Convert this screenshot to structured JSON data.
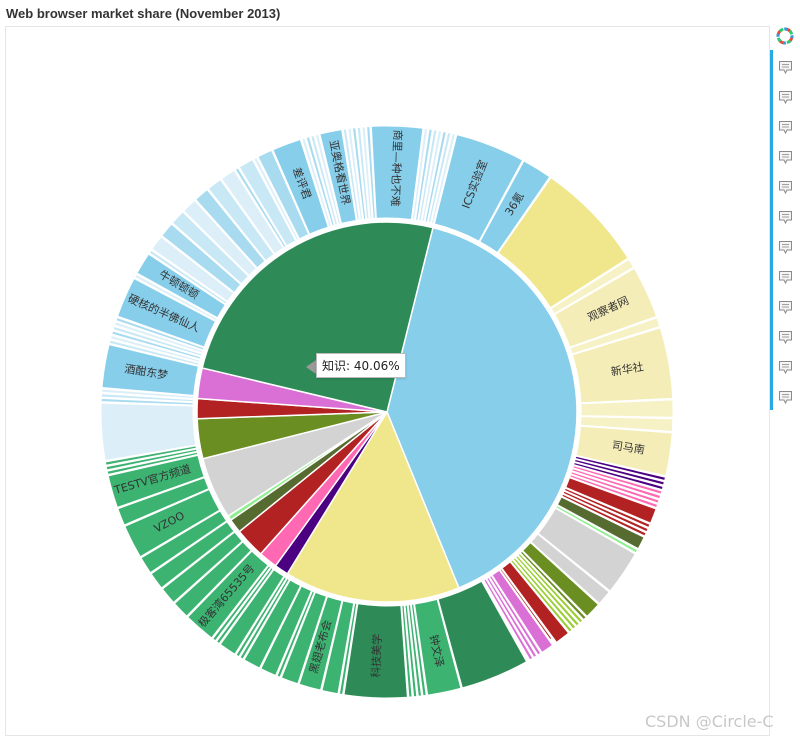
{
  "chart_data": {
    "type": "pie",
    "title": "Web browser market share (November 2013)",
    "start_angle_deg": 76,
    "inner": [
      {
        "name": "知识",
        "value": 40.06,
        "color": "#87CEEB"
      },
      {
        "name": "",
        "value": 15.0,
        "color": "#F0E68C"
      },
      {
        "name": "",
        "value": 1.2,
        "color": "#4B0082"
      },
      {
        "name": "",
        "value": 1.6,
        "color": "#FF69B4"
      },
      {
        "name": "",
        "value": 2.6,
        "color": "#B22222"
      },
      {
        "name": "",
        "value": 1.2,
        "color": "#556B2F"
      },
      {
        "name": "",
        "value": 0.4,
        "color": "#90EE90"
      },
      {
        "name": "",
        "value": 5.3,
        "color": "#D3D3D3"
      },
      {
        "name": "",
        "value": 3.4,
        "color": "#6B8E23"
      },
      {
        "name": "",
        "value": 1.7,
        "color": "#B22222"
      },
      {
        "name": "",
        "value": 2.6,
        "color": "#DA70D6"
      },
      {
        "name": "",
        "value": 25.24,
        "color": "#2E8B57"
      }
    ],
    "outer": [
      [
        6.1,
        "ICS实验室"
      ],
      [
        2.7,
        "36氪"
      ],
      [
        9.6,
        "",
        "#F0E68C"
      ],
      [
        0.9,
        ""
      ],
      [
        4.6,
        "观察者网"
      ],
      [
        0.9,
        ""
      ],
      [
        6.2,
        "新华社"
      ],
      [
        1.6,
        ""
      ],
      [
        1.2,
        ""
      ],
      [
        3.8,
        "司马南"
      ],
      [
        0.4,
        "",
        "#4B0082"
      ],
      [
        0.4,
        "",
        "#4B0082"
      ],
      [
        0.4,
        "",
        "#4B0082"
      ],
      [
        0.4,
        "",
        "#FF69B4"
      ],
      [
        0.4,
        "",
        "#FF69B4"
      ],
      [
        0.4,
        "",
        "#FF69B4"
      ],
      [
        0.4,
        "",
        "#FF69B4"
      ],
      [
        1.4,
        "",
        "#B22222"
      ],
      [
        0.4,
        "",
        "#B22222"
      ],
      [
        0.4,
        "",
        "#B22222"
      ],
      [
        0.4,
        "",
        "#B22222"
      ],
      [
        1.2,
        "",
        "#556B2F"
      ],
      [
        0.4,
        "",
        "#90EE90"
      ],
      [
        3.9,
        "",
        "#D3D3D3"
      ],
      [
        1.4,
        "",
        "#D3D3D3"
      ],
      [
        1.5,
        "",
        "#6B8E23"
      ],
      [
        0.4,
        "",
        "#6B8E23"
      ],
      [
        0.4,
        "",
        "#9ACD32"
      ],
      [
        0.4,
        "",
        "#9ACD32"
      ],
      [
        0.4,
        "",
        "#9ACD32"
      ],
      [
        0.4,
        "",
        "#9ACD32"
      ],
      [
        1.4,
        "",
        "#B22222"
      ],
      [
        0.3,
        "",
        "#B22222"
      ],
      [
        1.2,
        "",
        "#DA70D6"
      ],
      [
        0.4,
        "",
        "#DA70D6"
      ],
      [
        0.4,
        "",
        "#DA70D6"
      ],
      [
        0.4,
        "",
        "#DA70D6"
      ],
      [
        0.2,
        "",
        "#DA70D6"
      ],
      [
        6.0,
        "",
        "#2E8B57"
      ],
      [
        3.0,
        "钟文泽",
        "#3CB371"
      ],
      [
        0.4,
        "",
        "#3CB371"
      ],
      [
        0.4,
        "",
        "#3CB371"
      ],
      [
        0.4,
        "",
        "#3CB371"
      ],
      [
        0.4,
        "",
        "#3CB371"
      ],
      [
        5.5,
        "科技美学",
        "#2E8B57"
      ],
      [
        0.4,
        "",
        "#3CB371"
      ],
      [
        1.5,
        "",
        "#3CB371"
      ],
      [
        2.0,
        "黑翅老布会",
        "#3CB371"
      ],
      [
        1.6,
        "",
        "#3CB371"
      ],
      [
        0.4,
        "",
        "#3CB371"
      ],
      [
        1.5,
        "",
        "#3CB371"
      ],
      [
        1.6,
        "",
        "#3CB371"
      ],
      [
        0.4,
        "",
        "#3CB371"
      ],
      [
        0.4,
        "",
        "#3CB371"
      ],
      [
        1.6,
        "",
        "#3CB371"
      ],
      [
        0.4,
        "",
        "#3CB371"
      ],
      [
        0.4,
        "",
        "#3CB371"
      ],
      [
        2.8,
        "极客湾65535号",
        "#3CB371"
      ],
      [
        1.6,
        "",
        "#3CB371"
      ],
      [
        1.6,
        "",
        "#3CB371"
      ],
      [
        1.6,
        "",
        "#3CB371"
      ],
      [
        1.6,
        "",
        "#3CB371"
      ],
      [
        3.0,
        "VZOO",
        "#3CB371"
      ],
      [
        1.6,
        "",
        "#3CB371"
      ],
      [
        2.9,
        "TESTV官方频道",
        "#3CB371"
      ],
      [
        0.4,
        "",
        "#3CB371"
      ],
      [
        0.4,
        "",
        "#3CB371"
      ],
      [
        0.4,
        "",
        "#3CB371"
      ],
      [
        5.0,
        ""
      ],
      [
        0.4,
        ""
      ],
      [
        0.4,
        ""
      ],
      [
        0.4,
        ""
      ],
      [
        3.8,
        "酒酣东梦"
      ],
      [
        0.4,
        ""
      ],
      [
        0.4,
        ""
      ],
      [
        0.4,
        ""
      ],
      [
        0.4,
        ""
      ],
      [
        0.4,
        ""
      ],
      [
        0.4,
        ""
      ],
      [
        3.6,
        "硬核的半佛仙人"
      ],
      [
        0.4,
        ""
      ],
      [
        2.0,
        "牛顿顿顿"
      ],
      [
        0.4,
        ""
      ],
      [
        1.4,
        ""
      ],
      [
        1.4,
        ""
      ],
      [
        1.4,
        ""
      ],
      [
        1.4,
        ""
      ],
      [
        1.4,
        ""
      ],
      [
        1.4,
        ""
      ],
      [
        1.4,
        ""
      ],
      [
        0.4,
        ""
      ],
      [
        1.4,
        ""
      ],
      [
        0.4,
        ""
      ],
      [
        1.4,
        ""
      ],
      [
        2.6,
        "差评君"
      ],
      [
        0.4,
        ""
      ],
      [
        0.4,
        ""
      ],
      [
        0.4,
        ""
      ],
      [
        0.4,
        ""
      ],
      [
        2.0,
        "亚奥格看世界"
      ],
      [
        0.4,
        ""
      ],
      [
        0.4,
        ""
      ],
      [
        0.4,
        ""
      ],
      [
        0.4,
        ""
      ],
      [
        0.4,
        ""
      ],
      [
        0.4,
        ""
      ],
      [
        4.5,
        "商里—种也不难"
      ],
      [
        0.4,
        ""
      ],
      [
        0.4,
        ""
      ],
      [
        0.4,
        ""
      ],
      [
        0.4,
        ""
      ],
      [
        0.4,
        ""
      ],
      [
        0.4,
        ""
      ],
      [
        0.4,
        ""
      ]
    ]
  },
  "tooltip": {
    "text": "知识: 40.06%"
  },
  "watermark": "CSDN @Circle-C"
}
